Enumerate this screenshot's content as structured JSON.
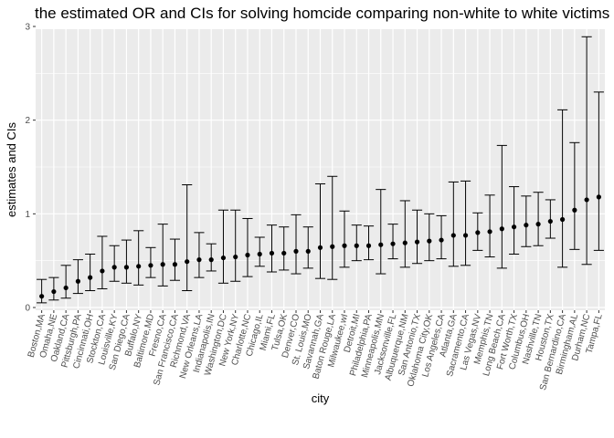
{
  "chart_data": {
    "type": "scatter",
    "title": "the estimated OR and CIs for solving homcide comparing non-white to white victims",
    "xlabel": "city",
    "ylabel": "estimates and CIs",
    "ylim": [
      0,
      3
    ],
    "yticks": [
      0,
      1,
      2,
      3
    ],
    "grid": true,
    "legend": "none",
    "error_bars": true,
    "colors": {
      "panel": "#ebebeb",
      "grid": "#ffffff",
      "point": "#000000",
      "errorbar": "#000000"
    },
    "points": [
      {
        "city": "Boston,MA",
        "estimate": 0.12,
        "lower": 0.05,
        "upper": 0.3
      },
      {
        "city": "Omaha,NE",
        "estimate": 0.17,
        "lower": 0.08,
        "upper": 0.32
      },
      {
        "city": "Oakland,CA",
        "estimate": 0.21,
        "lower": 0.1,
        "upper": 0.45
      },
      {
        "city": "Pittsburgh,PA",
        "estimate": 0.28,
        "lower": 0.15,
        "upper": 0.51
      },
      {
        "city": "Cincinnati,OH",
        "estimate": 0.32,
        "lower": 0.18,
        "upper": 0.57
      },
      {
        "city": "Stockton,CA",
        "estimate": 0.39,
        "lower": 0.2,
        "upper": 0.76
      },
      {
        "city": "Louisville,KY",
        "estimate": 0.43,
        "lower": 0.28,
        "upper": 0.66
      },
      {
        "city": "San Diego,CA",
        "estimate": 0.43,
        "lower": 0.26,
        "upper": 0.72
      },
      {
        "city": "Buffalo,NY",
        "estimate": 0.44,
        "lower": 0.24,
        "upper": 0.82
      },
      {
        "city": "Baltimore,MD",
        "estimate": 0.45,
        "lower": 0.32,
        "upper": 0.64
      },
      {
        "city": "Fresno,CA",
        "estimate": 0.46,
        "lower": 0.23,
        "upper": 0.89
      },
      {
        "city": "San Francisco,CA",
        "estimate": 0.46,
        "lower": 0.29,
        "upper": 0.73
      },
      {
        "city": "Richmond,VA",
        "estimate": 0.49,
        "lower": 0.18,
        "upper": 1.31
      },
      {
        "city": "New Orleans,LA",
        "estimate": 0.51,
        "lower": 0.32,
        "upper": 0.8
      },
      {
        "city": "Indianapolis,IN",
        "estimate": 0.51,
        "lower": 0.39,
        "upper": 0.68
      },
      {
        "city": "Washington,DC",
        "estimate": 0.53,
        "lower": 0.26,
        "upper": 1.04
      },
      {
        "city": "New York,NY",
        "estimate": 0.54,
        "lower": 0.28,
        "upper": 1.04
      },
      {
        "city": "Charlotte,NC",
        "estimate": 0.56,
        "lower": 0.33,
        "upper": 0.95
      },
      {
        "city": "Chicago,IL",
        "estimate": 0.57,
        "lower": 0.44,
        "upper": 0.75
      },
      {
        "city": "Miami,FL",
        "estimate": 0.58,
        "lower": 0.38,
        "upper": 0.88
      },
      {
        "city": "Tulsa,OK",
        "estimate": 0.58,
        "lower": 0.4,
        "upper": 0.86
      },
      {
        "city": "Denver,CO",
        "estimate": 0.6,
        "lower": 0.36,
        "upper": 0.99
      },
      {
        "city": "St. Louis,MO",
        "estimate": 0.6,
        "lower": 0.42,
        "upper": 0.86
      },
      {
        "city": "Savannah,GA",
        "estimate": 0.64,
        "lower": 0.31,
        "upper": 1.32
      },
      {
        "city": "Baton Rouge,LA",
        "estimate": 0.65,
        "lower": 0.3,
        "upper": 1.4
      },
      {
        "city": "Milwaukee,wI",
        "estimate": 0.66,
        "lower": 0.43,
        "upper": 1.03
      },
      {
        "city": "Detroit,MI",
        "estimate": 0.66,
        "lower": 0.5,
        "upper": 0.88
      },
      {
        "city": "Philadelphia,PA",
        "estimate": 0.66,
        "lower": 0.51,
        "upper": 0.87
      },
      {
        "city": "Minneapolis,MN",
        "estimate": 0.67,
        "lower": 0.36,
        "upper": 1.26
      },
      {
        "city": "Jacksonville,FL",
        "estimate": 0.68,
        "lower": 0.52,
        "upper": 0.89
      },
      {
        "city": "Albuquerque,NM",
        "estimate": 0.69,
        "lower": 0.43,
        "upper": 1.14
      },
      {
        "city": "San Antonio,TX",
        "estimate": 0.7,
        "lower": 0.47,
        "upper": 1.04
      },
      {
        "city": "Oklahoma City,OK",
        "estimate": 0.71,
        "lower": 0.5,
        "upper": 1.0
      },
      {
        "city": "Los Angeles,CA",
        "estimate": 0.72,
        "lower": 0.52,
        "upper": 0.98
      },
      {
        "city": "Atlanta,GA",
        "estimate": 0.77,
        "lower": 0.44,
        "upper": 1.34
      },
      {
        "city": "Sacramento,CA",
        "estimate": 0.77,
        "lower": 0.45,
        "upper": 1.35
      },
      {
        "city": "Las Vegas,NV",
        "estimate": 0.8,
        "lower": 0.61,
        "upper": 1.01
      },
      {
        "city": "Memphis,TN",
        "estimate": 0.81,
        "lower": 0.54,
        "upper": 1.2
      },
      {
        "city": "Long Beach,CA",
        "estimate": 0.84,
        "lower": 0.42,
        "upper": 1.73
      },
      {
        "city": "Fort Worth,TX",
        "estimate": 0.86,
        "lower": 0.57,
        "upper": 1.29
      },
      {
        "city": "Columbus,OH",
        "estimate": 0.88,
        "lower": 0.65,
        "upper": 1.19
      },
      {
        "city": "Nashville,TN",
        "estimate": 0.89,
        "lower": 0.66,
        "upper": 1.23
      },
      {
        "city": "Houston,TX",
        "estimate": 0.92,
        "lower": 0.74,
        "upper": 1.15
      },
      {
        "city": "San Bernardino,CA",
        "estimate": 0.94,
        "lower": 0.43,
        "upper": 2.11
      },
      {
        "city": "Birmingham,AL",
        "estimate": 1.04,
        "lower": 0.62,
        "upper": 1.76
      },
      {
        "city": "Durham,NC",
        "estimate": 1.15,
        "lower": 0.46,
        "upper": 2.89
      },
      {
        "city": "Tampa,FL",
        "estimate": 1.18,
        "lower": 0.61,
        "upper": 2.3
      }
    ]
  }
}
